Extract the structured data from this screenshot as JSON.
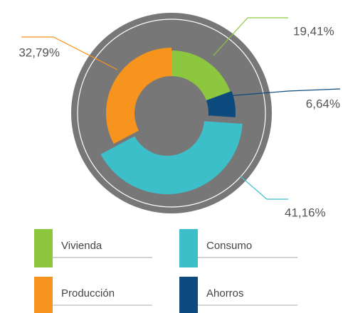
{
  "chart_data": {
    "type": "pie",
    "categories": [
      "Vivienda",
      "Ahorros",
      "Consumo",
      "Producción"
    ],
    "values": [
      19.41,
      6.64,
      41.16,
      32.79
    ],
    "value_labels": [
      "19,41%",
      "6,64%",
      "41,16%",
      "32,79%"
    ],
    "colors": [
      "#8dc63f",
      "#0d4a7e",
      "#3dbfc9",
      "#f7941d"
    ]
  }
}
